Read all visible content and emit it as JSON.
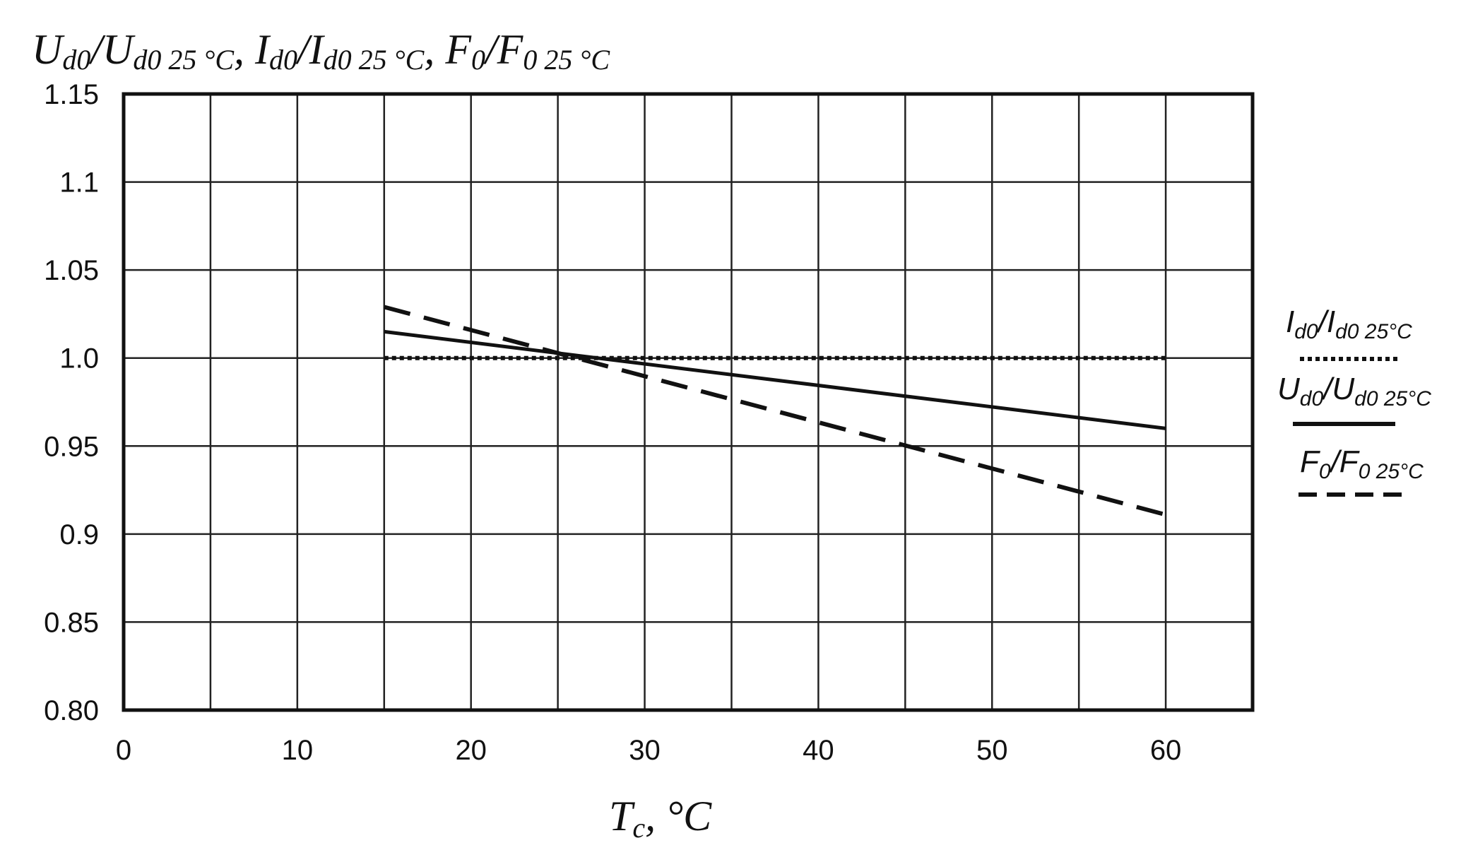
{
  "chart_data": {
    "type": "line",
    "title_parts": {
      "u_main": "U",
      "u_sub": "d0",
      "slash1": "/U",
      "u_ref_sub": "d0 25 °C",
      "sep1": ", I",
      "i_sub": "d0",
      "slash2": "/I",
      "i_ref_sub": "d0 25 °C",
      "sep2": ", F",
      "f_sub": "0",
      "slash3": "/F",
      "f_ref_sub": "0 25 °C"
    },
    "xlabel_parts": {
      "main": "T",
      "sub": "c",
      "rest": ", °C"
    },
    "xlim": [
      0,
      65
    ],
    "ylim": [
      0.8,
      1.15
    ],
    "x_ticks": [
      {
        "value": 0,
        "label": "0"
      },
      {
        "value": 10,
        "label": "10"
      },
      {
        "value": 20,
        "label": "20"
      },
      {
        "value": 30,
        "label": "30"
      },
      {
        "value": 40,
        "label": "40"
      },
      {
        "value": 50,
        "label": "50"
      },
      {
        "value": 60,
        "label": "60"
      }
    ],
    "x_gridlines": [
      5,
      10,
      15,
      20,
      25,
      30,
      35,
      40,
      45,
      50,
      55,
      60
    ],
    "y_ticks": [
      {
        "value": 0.8,
        "label": "0.80"
      },
      {
        "value": 0.85,
        "label": "0.85"
      },
      {
        "value": 0.9,
        "label": "0.9"
      },
      {
        "value": 0.95,
        "label": "0.95"
      },
      {
        "value": 1.0,
        "label": "1.0"
      },
      {
        "value": 1.05,
        "label": "1.05"
      },
      {
        "value": 1.1,
        "label": "1.1"
      },
      {
        "value": 1.15,
        "label": "1.15"
      }
    ],
    "grid": true,
    "legend_position": "right",
    "series": [
      {
        "key": "i",
        "style": "dotted",
        "x": [
          15,
          60
        ],
        "y": [
          1.0,
          1.0
        ]
      },
      {
        "key": "u",
        "style": "solid",
        "x": [
          15,
          60
        ],
        "y": [
          1.015,
          0.96
        ]
      },
      {
        "key": "f",
        "style": "dashed",
        "x": [
          15,
          60
        ],
        "y": [
          1.029,
          0.911
        ]
      }
    ],
    "legend": [
      {
        "key": "i",
        "style": "dotted",
        "main": "I",
        "sub1": "d0",
        "mid": "/I",
        "sub2": "d0 25°C"
      },
      {
        "key": "u",
        "style": "solid",
        "main": "U",
        "sub1": "d0",
        "mid": "/U",
        "sub2": "d0 25°C"
      },
      {
        "key": "f",
        "style": "dashed",
        "main": "F",
        "sub1": "0",
        "mid": "/F",
        "sub2": "0 25°C"
      }
    ]
  }
}
